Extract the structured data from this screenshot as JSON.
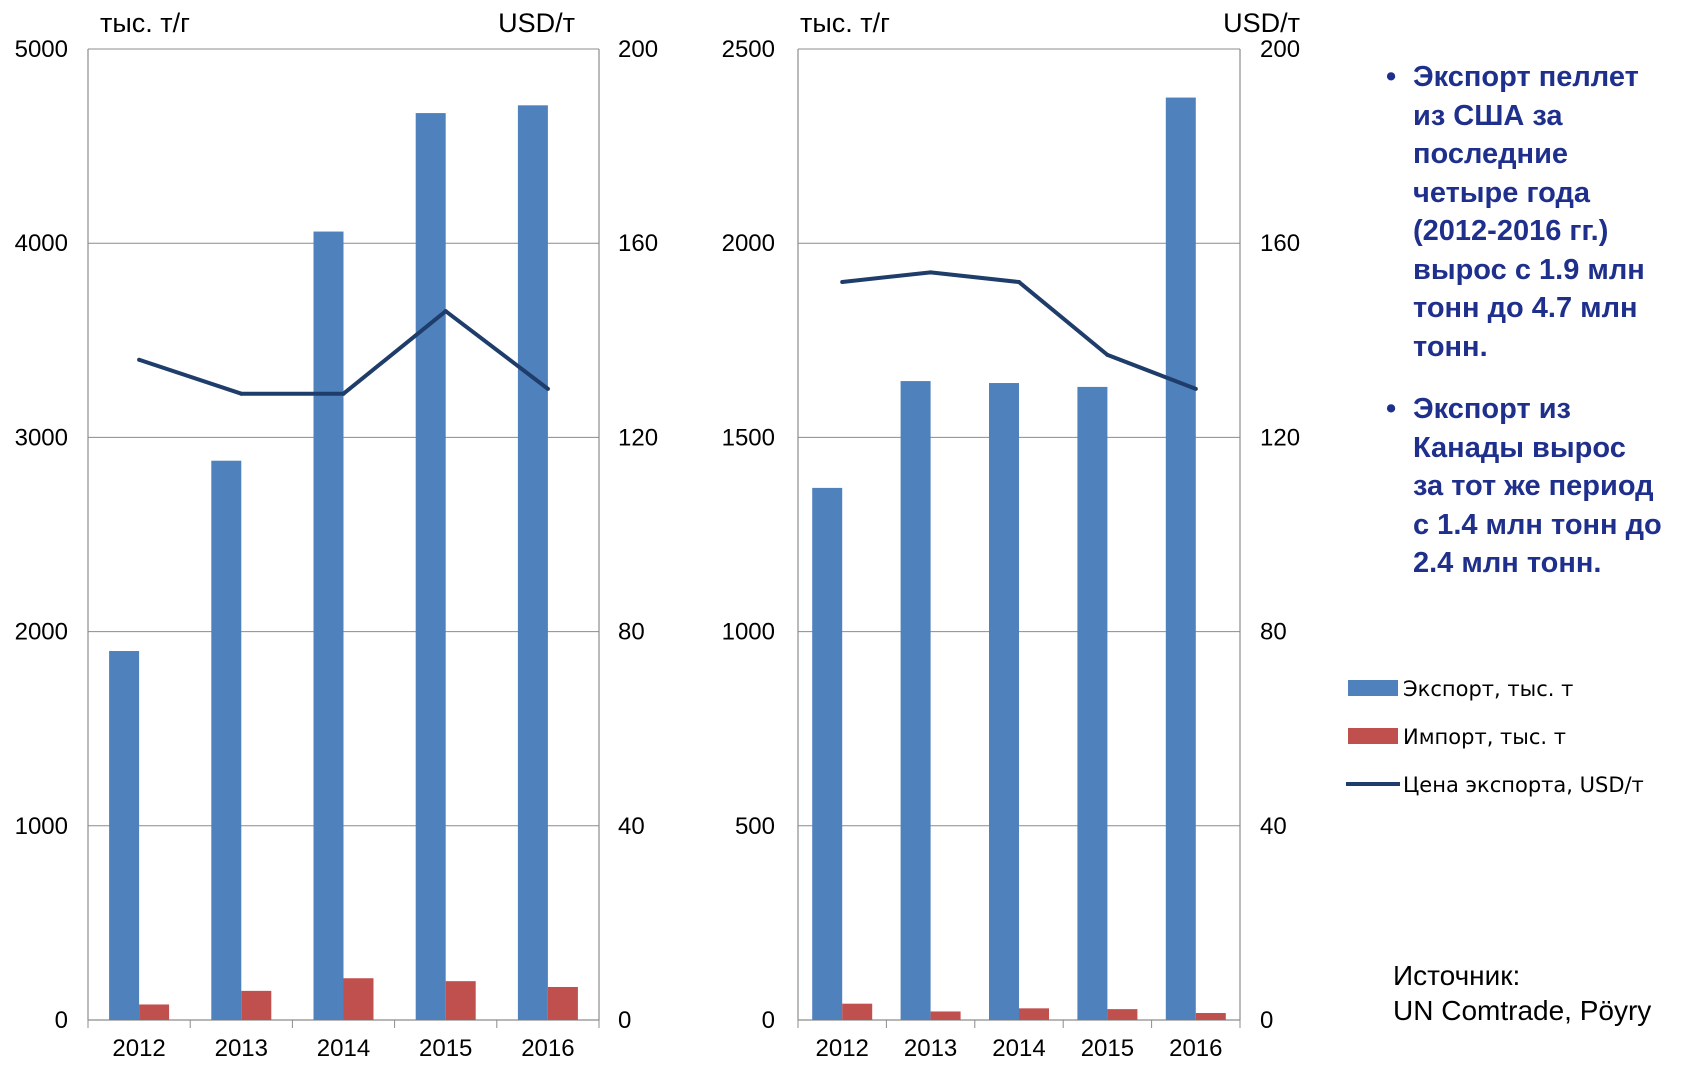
{
  "chart_data": [
    {
      "type": "bar",
      "categories": [
        "2012",
        "2013",
        "2014",
        "2015",
        "2016"
      ],
      "y_unit_left": "тыс. т/г",
      "y_unit_right": "USD/т",
      "ylim": [
        0,
        5000
      ],
      "y_ticks": [
        "0",
        "1000",
        "2000",
        "3000",
        "4000",
        "5000"
      ],
      "y2lim": [
        0,
        200
      ],
      "y2_ticks": [
        "0",
        "40",
        "80",
        "120",
        "160",
        "200"
      ],
      "grid": true,
      "series": [
        {
          "name": "Экспорт, тыс. т",
          "kind": "bar",
          "axis": "left",
          "color": "#4f81bd",
          "values": [
            1900,
            2880,
            4060,
            4670,
            4710
          ]
        },
        {
          "name": "Импорт, тыс. т",
          "kind": "bar",
          "axis": "left",
          "color": "#c0504d",
          "values": [
            80,
            150,
            215,
            200,
            170
          ]
        },
        {
          "name": "Цена экспорта, USD/т",
          "kind": "line",
          "axis": "right",
          "color": "#1f3d6b",
          "values": [
            136,
            129,
            129,
            146,
            130
          ]
        }
      ]
    },
    {
      "type": "bar",
      "categories": [
        "2012",
        "2013",
        "2014",
        "2015",
        "2016"
      ],
      "y_unit_left": "тыс. т/г",
      "y_unit_right": "USD/т",
      "ylim": [
        0,
        2500
      ],
      "y_ticks": [
        "0",
        "500",
        "1000",
        "1500",
        "2000",
        "2500"
      ],
      "y2lim": [
        0,
        200
      ],
      "y2_ticks": [
        "0",
        "40",
        "80",
        "120",
        "160",
        "200"
      ],
      "grid": true,
      "series": [
        {
          "name": "Экспорт, тыс. т",
          "kind": "bar",
          "axis": "left",
          "color": "#4f81bd",
          "values": [
            1370,
            1645,
            1640,
            1630,
            2375
          ]
        },
        {
          "name": "Импорт, тыс. т",
          "kind": "bar",
          "axis": "left",
          "color": "#c0504d",
          "values": [
            42,
            22,
            30,
            28,
            18
          ]
        },
        {
          "name": "Цена экспорта, USD/т",
          "kind": "line",
          "axis": "right",
          "color": "#1f3d6b",
          "values": [
            152,
            154,
            152,
            137,
            130
          ]
        }
      ]
    }
  ],
  "legend": {
    "placement": "right",
    "items": [
      {
        "label": "Экспорт, тыс. т",
        "color": "#4f81bd",
        "kind": "bar"
      },
      {
        "label": "Импорт, тыс. т",
        "color": "#c0504d",
        "kind": "bar"
      },
      {
        "label": "Цена экспорта, USD/т",
        "color": "#1f3d6b",
        "kind": "line"
      }
    ]
  },
  "notes": {
    "bullet_char": "•",
    "color": "#1f2f8c",
    "bullets": [
      [
        "Экспорт пеллет",
        "из США за",
        "последние",
        "четыре года",
        "(2012-2016 гг.)",
        "вырос с 1.9 млн",
        "тонн до 4.7 млн",
        "тонн."
      ],
      [
        "Экспорт из",
        "Канады вырос",
        "за тот же период",
        "с 1.4 млн тонн до",
        "2.4 млн тонн."
      ]
    ]
  },
  "source": {
    "label": "Источник:",
    "text": "UN Comtrade, Pöyry"
  }
}
